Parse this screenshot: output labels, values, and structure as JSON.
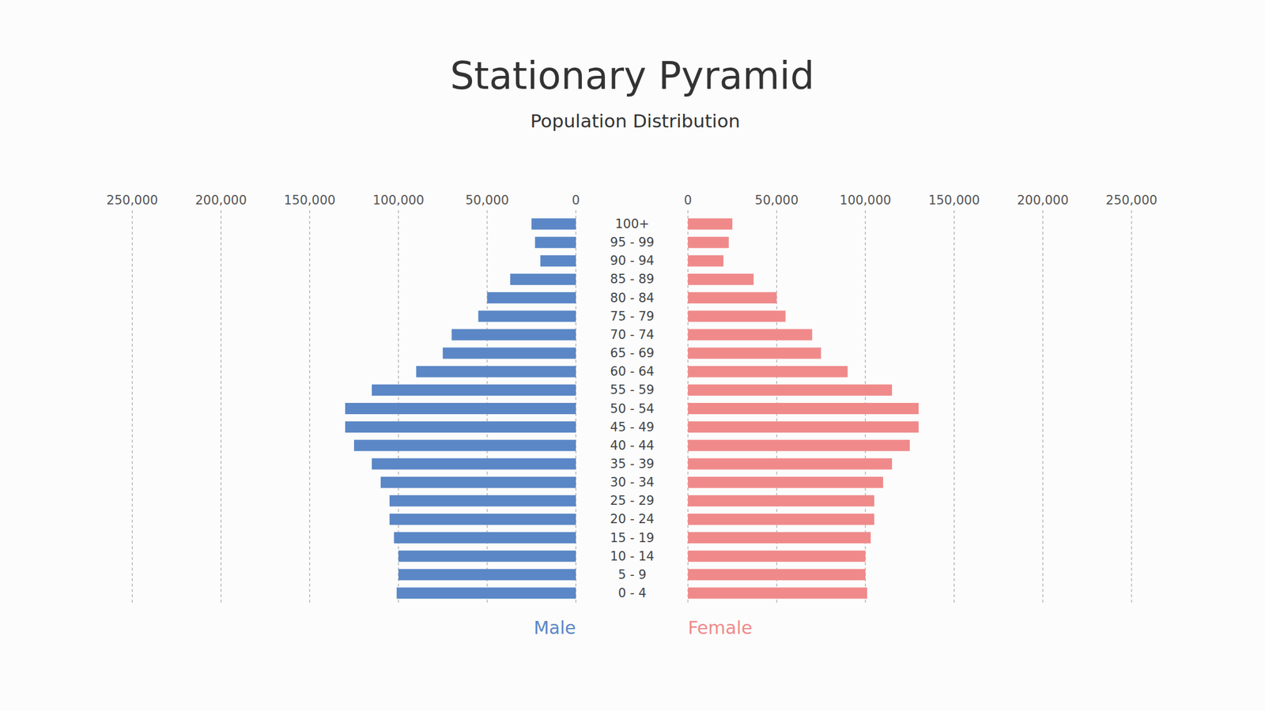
{
  "chart_data": {
    "type": "bar",
    "orientation": "horizontal",
    "title": "Stationary Pyramid",
    "subtitle": "Population Distribution",
    "categories": [
      "0 - 4",
      "5 - 9",
      "10 - 14",
      "15 - 19",
      "20 - 24",
      "25 - 29",
      "30 - 34",
      "35 - 39",
      "40 - 44",
      "45 - 49",
      "50 - 54",
      "55 - 59",
      "60 - 64",
      "65 - 69",
      "70 - 74",
      "75 - 79",
      "80 - 84",
      "85 - 89",
      "90 - 94",
      "95 - 99",
      "100+"
    ],
    "series": [
      {
        "name": "Male",
        "color": "#5b87c6",
        "values": [
          101000,
          100000,
          100000,
          102500,
          105000,
          105000,
          110000,
          115000,
          125000,
          130000,
          130000,
          115000,
          90000,
          75000,
          70000,
          55000,
          50000,
          37000,
          20000,
          23000,
          25000
        ]
      },
      {
        "name": "Female",
        "color": "#f08a8a",
        "values": [
          101000,
          100000,
          100000,
          103000,
          105000,
          105000,
          110000,
          115000,
          125000,
          130000,
          130000,
          115000,
          90000,
          75000,
          70000,
          55000,
          50000,
          37000,
          20000,
          23000,
          25000
        ]
      }
    ],
    "xlim": [
      0,
      250000
    ],
    "xticks": [
      0,
      {
        "value": 50000,
        "label": "50,000"
      },
      {
        "value": 100000,
        "label": "100,000"
      },
      {
        "value": 150000,
        "label": "150,000"
      },
      {
        "value": 200000,
        "label": "200,000"
      },
      {
        "value": 250000,
        "label": "250,000"
      }
    ],
    "grid": true,
    "legend": "bottom"
  }
}
